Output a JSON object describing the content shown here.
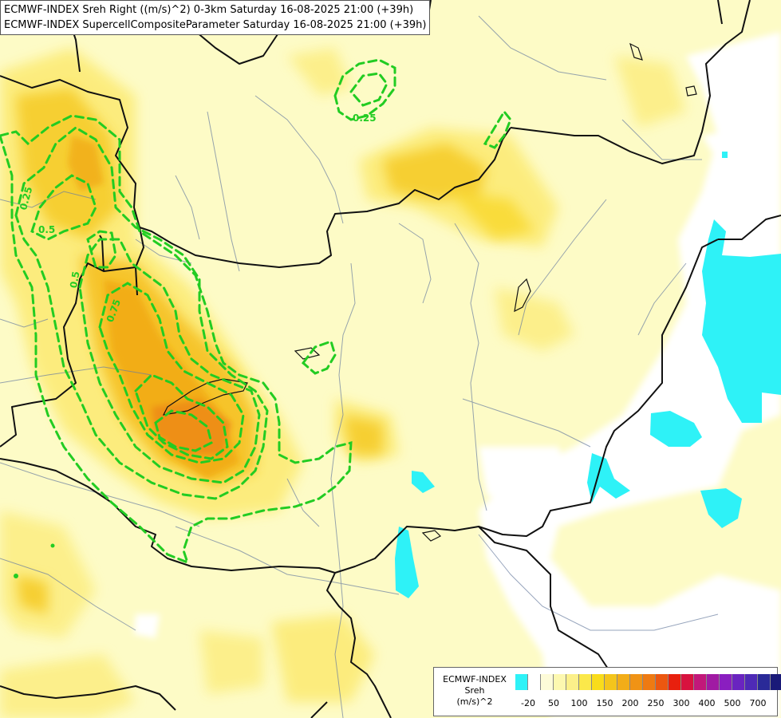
{
  "titles": [
    "ECMWF-INDEX Sreh Right ((m/s)^2) 0-3km Saturday 16-08-2025 21:00 (+39h)",
    "ECMWF-INDEX SupercellCompositeParameter Saturday 16-08-2025 21:00 (+39h)"
  ],
  "legend": {
    "line1": "ECMWF-INDEX",
    "line2": "Sreh",
    "line3": "(m/s)^2",
    "colors": [
      "#2ef2f7",
      "#ffffff",
      "#fdfbd8",
      "#fdf8b0",
      "#fcf08a",
      "#fbe84a",
      "#f9dc1b",
      "#f4c51c",
      "#f2ad18",
      "#f09315",
      "#ee7a12",
      "#ec5710",
      "#e8200e",
      "#d8133f",
      "#c2187a",
      "#a01aa3",
      "#8a1ec0",
      "#6a24c0",
      "#4e2ab6",
      "#2a2a98",
      "#1a1a78"
    ],
    "ticks": [
      "-20",
      "50",
      "100",
      "150",
      "200",
      "250",
      "300",
      "400",
      "500",
      "700"
    ]
  },
  "contour_labels": [
    "0.25",
    "0.5",
    "0.75",
    "0.25",
    "0.5"
  ]
}
